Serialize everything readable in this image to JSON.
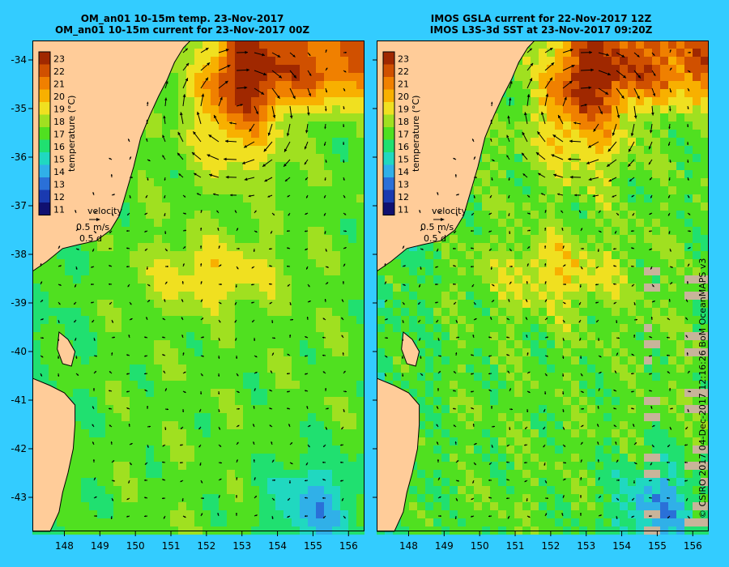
{
  "panels": [
    {
      "id": "left",
      "title_line1": "OM_an01 10-15m temp. 23-Nov-2017",
      "title_line2": "OM_an01 10-15m current for 23-Nov-2017 00Z"
    },
    {
      "id": "right",
      "title_line1": "IMOS GSLA current for 22-Nov-2017 12Z",
      "title_line2": "IMOS L3S-3d SST at 23-Nov-2017 09:20Z"
    }
  ],
  "axes": {
    "x_ticks": [
      "148",
      "149",
      "150",
      "151",
      "152",
      "153",
      "154",
      "155",
      "156"
    ],
    "y_ticks": [
      "-34",
      "-35",
      "-36",
      "-37",
      "-38",
      "-39",
      "-40",
      "-41",
      "-42",
      "-43"
    ],
    "x_range": [
      147.1,
      156.45
    ],
    "y_range": [
      -43.7,
      -33.6
    ]
  },
  "colorbar": {
    "label": "temperature (°C)",
    "ticks": [
      "23",
      "22",
      "21",
      "20",
      "19",
      "18",
      "17",
      "16",
      "15",
      "14",
      "13",
      "12",
      "11"
    ],
    "range": [
      11,
      23
    ],
    "colors": [
      "#101070",
      "#1a3ab0",
      "#2a70d8",
      "#30b0e8",
      "#20d8c0",
      "#20e070",
      "#50e020",
      "#a0e020",
      "#f0e020",
      "#f8b000",
      "#f08000",
      "#d05000",
      "#a02800"
    ]
  },
  "velocity_legend": {
    "label": "velocity",
    "scale_speed": "0.5 m/s",
    "scale_time": "0.5 d"
  },
  "eddy_center": {
    "lon": 152.9,
    "lat": -35.1
  },
  "land_color": "#ffcc99",
  "ocean_bg_color": "#33ccff",
  "copyright": "© CSIRO 2017   04-Dec-2017 12:16:26 BoM OceanMAPS v3"
}
